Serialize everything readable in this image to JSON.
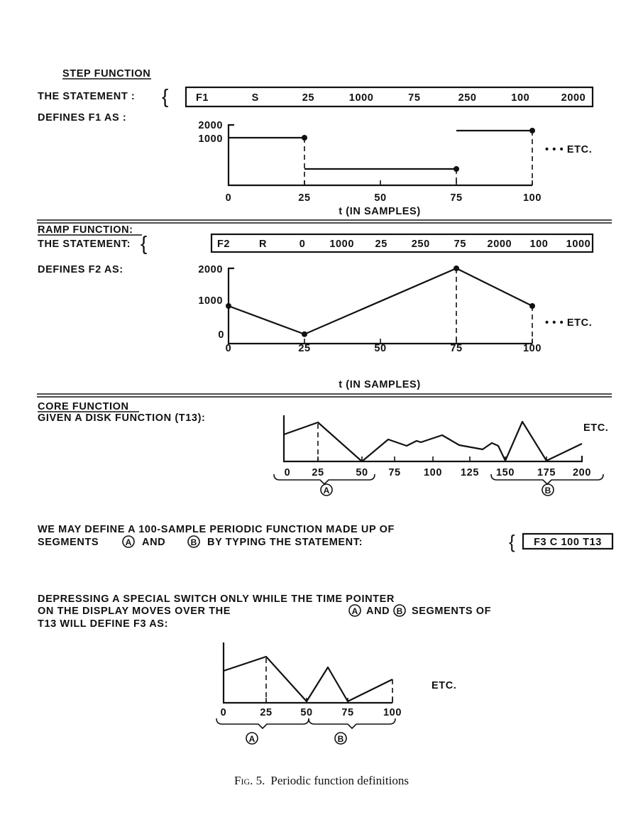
{
  "step": {
    "heading": "STEP FUNCTION",
    "statement_label": "THE STATEMENT :",
    "statement": [
      "F1",
      "S",
      "25",
      "1000",
      "75",
      "250",
      "100",
      "2000"
    ],
    "defines_label": "DEFINES F1 AS :",
    "y_ticks": [
      "2000",
      "1000"
    ],
    "x_ticks": [
      "0",
      "25",
      "50",
      "75",
      "100"
    ],
    "xlabel": "t (IN SAMPLES)",
    "etc": "• • • ETC."
  },
  "ramp": {
    "heading": "RAMP FUNCTION:",
    "statement_label": "THE STATEMENT:",
    "statement": [
      "F2",
      "R",
      "0",
      "1000",
      "25",
      "250",
      "75",
      "2000",
      "100",
      "1000"
    ],
    "defines_label": "DEFINES F2 AS:",
    "y_ticks": [
      "2000",
      "1000",
      "0"
    ],
    "x_ticks": [
      "0",
      "25",
      "50",
      "75",
      "100"
    ],
    "xlabel": "t (IN SAMPLES)",
    "etc": "• • • ETC."
  },
  "core": {
    "heading": "CORE FUNCTION",
    "given_label": "GIVEN A DISK FUNCTION (T13):",
    "x_ticks": [
      "0",
      "25",
      "50",
      "75",
      "100",
      "125",
      "150",
      "175",
      "200"
    ],
    "etc": "ETC.",
    "segment_a": "A",
    "segment_b": "B",
    "line1": "WE MAY DEFINE A 100-SAMPLE PERIODIC FUNCTION MADE UP OF",
    "line2_a": "SEGMENTS",
    "line2_and": "AND",
    "line2_b": "BY TYPING THE STATEMENT:",
    "statement": "F3 C 100 T13",
    "para2_line1": "DEPRESSING A SPECIAL SWITCH ONLY WHILE THE TIME POINTER",
    "para2_line2a": "ON THE DISPLAY MOVES OVER THE",
    "para2_line2and": "AND",
    "para2_line2b": "SEGMENTS OF",
    "para2_line3": "T13 WILL DEFINE F3 AS:",
    "result_x_ticks": [
      "0",
      "25",
      "50",
      "75",
      "100"
    ],
    "result_etc": "ETC."
  },
  "chart_data": [
    {
      "type": "line",
      "title": "",
      "xlabel": "t (IN SAMPLES)",
      "step": true,
      "x": [
        0,
        25,
        25,
        75,
        75,
        100
      ],
      "y": [
        1000,
        1000,
        250,
        250,
        2000,
        2000
      ],
      "ylim": [
        0,
        2000
      ],
      "xlim": [
        0,
        100
      ]
    },
    {
      "type": "line",
      "title": "",
      "xlabel": "t (IN SAMPLES)",
      "x": [
        0,
        25,
        75,
        100
      ],
      "y": [
        1000,
        250,
        2000,
        1000
      ],
      "ylim": [
        0,
        2000
      ],
      "xlim": [
        0,
        100
      ]
    }
  ],
  "caption": {
    "fig": "Fig. 5.",
    "text": "Periodic function definitions"
  }
}
